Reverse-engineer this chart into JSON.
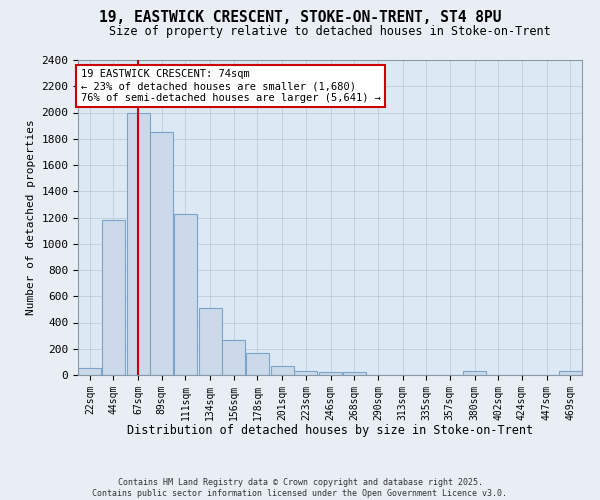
{
  "title1": "19, EASTWICK CRESCENT, STOKE-ON-TRENT, ST4 8PU",
  "title2": "Size of property relative to detached houses in Stoke-on-Trent",
  "xlabel": "Distribution of detached houses by size in Stoke-on-Trent",
  "ylabel": "Number of detached properties",
  "footnote1": "Contains HM Land Registry data © Crown copyright and database right 2025.",
  "footnote2": "Contains public sector information licensed under the Open Government Licence v3.0.",
  "bin_labels": [
    "22sqm",
    "44sqm",
    "67sqm",
    "89sqm",
    "111sqm",
    "134sqm",
    "156sqm",
    "178sqm",
    "201sqm",
    "223sqm",
    "246sqm",
    "268sqm",
    "290sqm",
    "313sqm",
    "335sqm",
    "357sqm",
    "380sqm",
    "402sqm",
    "424sqm",
    "447sqm",
    "469sqm"
  ],
  "bar_values": [
    50,
    1180,
    2000,
    1850,
    1230,
    510,
    270,
    170,
    65,
    30,
    20,
    20,
    0,
    0,
    0,
    0,
    30,
    0,
    0,
    0,
    30
  ],
  "bar_color": "#ccd9e8",
  "bar_edge_color": "#7ba4cc",
  "bin_centers": [
    22,
    44,
    67,
    89,
    111,
    134,
    156,
    178,
    201,
    223,
    246,
    268,
    290,
    313,
    335,
    357,
    380,
    402,
    424,
    447,
    469
  ],
  "bin_width": 22,
  "property_line_x": 67,
  "ylim": [
    0,
    2400
  ],
  "yticks": [
    0,
    200,
    400,
    600,
    800,
    1000,
    1200,
    1400,
    1600,
    1800,
    2000,
    2200,
    2400
  ],
  "red_line_color": "#cc0000",
  "annotation_text": "19 EASTWICK CRESCENT: 74sqm\n← 23% of detached houses are smaller (1,680)\n76% of semi-detached houses are larger (5,641) →",
  "annotation_box_color": "#ffffff",
  "annotation_box_edge": "#cc0000",
  "bg_color": "#e8eef4",
  "plot_bg_color": "#dce8f4",
  "grid_color": "#c0ccd8",
  "title1_fontsize": 10.5,
  "title2_fontsize": 8.5
}
